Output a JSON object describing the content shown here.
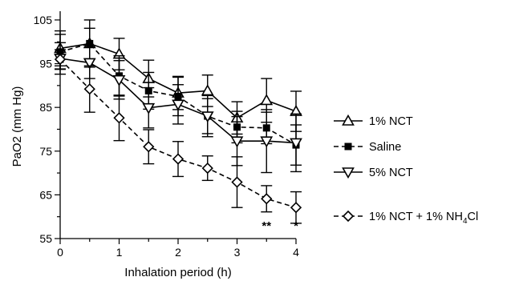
{
  "chart_data": {
    "type": "line",
    "title": "",
    "xlabel": "Inhalation period (h)",
    "ylabel": "PaO2 (mm Hg)",
    "xlim": [
      0,
      4
    ],
    "ylim": [
      55,
      107
    ],
    "x_ticks": [
      "0",
      "1",
      "2",
      "3",
      "4"
    ],
    "y_ticks": [
      "55",
      "65",
      "75",
      "85",
      "95",
      "105"
    ],
    "grid": false,
    "legend_position": "right",
    "x": [
      0,
      0.5,
      1,
      1.5,
      2,
      2.5,
      3,
      3.5,
      4
    ],
    "series": [
      {
        "name": "1% NCT",
        "marker": "triangle-up-open",
        "line": "solid",
        "values": [
          98.5,
          99.6,
          97.2,
          91.6,
          88.3,
          88.8,
          82.6,
          86.6,
          84.1
        ],
        "errors": [
          4.0,
          5.4,
          3.6,
          4.2,
          3.8,
          3.6,
          3.7,
          5.0,
          4.6
        ]
      },
      {
        "name": "Saline",
        "marker": "square-filled",
        "line": "dashed",
        "values": [
          97.7,
          99.6,
          92.2,
          88.8,
          87.5,
          83.0,
          80.5,
          80.3,
          76.4
        ],
        "errors": [
          4.0,
          3.5,
          4.6,
          4.2,
          4.4,
          4.0,
          3.6,
          3.6,
          4.6
        ]
      },
      {
        "name": "5% NCT",
        "marker": "triangle-down-open",
        "line": "solid",
        "values": [
          96.2,
          95.2,
          91.3,
          84.9,
          85.7,
          83.0,
          77.3,
          77.3,
          76.9
        ],
        "errors": [
          3.6,
          3.6,
          4.4,
          4.6,
          4.5,
          4.7,
          5.6,
          7.2,
          6.6
        ]
      },
      {
        "name": "1% NCT + 1% NH4Cl",
        "marker": "diamond-open",
        "line": "dashed",
        "values": [
          96.0,
          89.2,
          82.6,
          76.0,
          73.2,
          71.1,
          67.9,
          64.1,
          62.1
        ],
        "errors": [
          2.2,
          5.3,
          5.2,
          3.9,
          4.0,
          2.8,
          5.8,
          3.0,
          3.6
        ]
      }
    ],
    "legend_labels": [
      "1% NCT",
      "Saline",
      "5% NCT",
      "1% NCT + 1% NH"
    ],
    "legend_subscript": "4",
    "legend_suffix": "Cl",
    "annotations": [
      {
        "text": "**",
        "x": 3.5,
        "y": 61.0
      },
      {
        "text": "*",
        "x": 4,
        "y": 61.0
      }
    ]
  }
}
